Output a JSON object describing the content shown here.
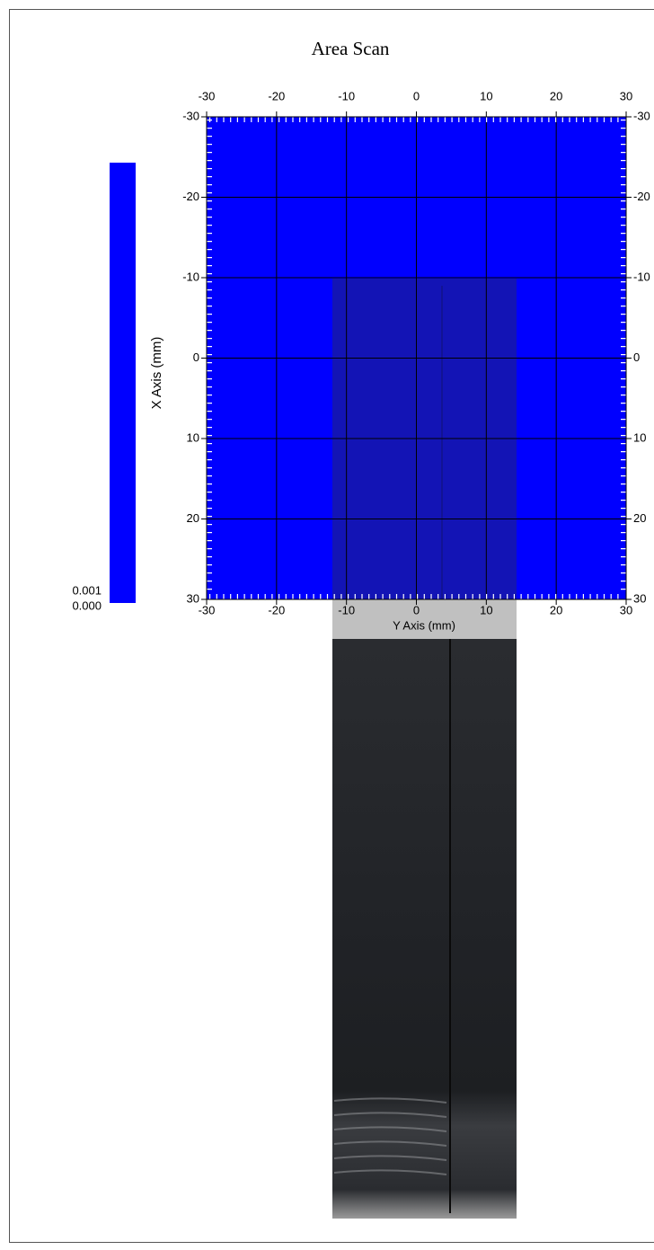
{
  "chart_data": {
    "type": "heatmap",
    "title": "Area Scan",
    "xlabel": "Y Axis (mm)",
    "ylabel": "X Axis (mm)",
    "xlim": [
      -30,
      30
    ],
    "ylim": [
      -30,
      30
    ],
    "xticks": [
      -30,
      -20,
      -10,
      0,
      10,
      20,
      30
    ],
    "yticks": [
      -30,
      -20,
      -10,
      0,
      10,
      20,
      30
    ],
    "grid": true,
    "color": "#0000ff",
    "colorbar": {
      "color": "#0000ff",
      "ticks": [
        0.001,
        {
          "value": 0,
          "label": "0.000"
        }
      ]
    }
  }
}
